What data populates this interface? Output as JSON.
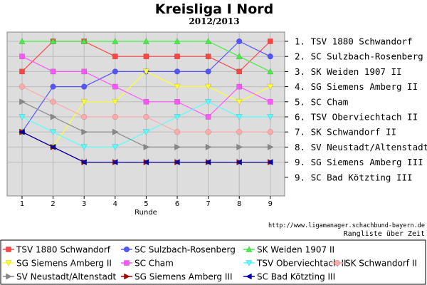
{
  "chart_data": {
    "type": "line",
    "title": "Kreisliga I Nord",
    "subtitle": "2012/2013",
    "xlabel": "Runde",
    "ylabel": "",
    "x": [
      1,
      2,
      3,
      4,
      5,
      6,
      7,
      8,
      9
    ],
    "ylim": [
      1,
      9
    ],
    "y_inverted": true,
    "grid": true,
    "legend_position": "bottom",
    "rank_labels": [
      "1. TSV 1880 Schwandorf",
      "2. SC Sulzbach-Rosenberg",
      "3. SK Weiden 1907 II",
      "4. SG Siemens Amberg II",
      "5. SC Cham",
      "6. TSV Oberviechtach II",
      "7. SK Schwandorf II",
      "8. SV Neustadt/Altenstadt",
      "9. SG Siemens Amberg III",
      "9. SC Bad Kötzting III"
    ],
    "series": [
      {
        "name": "TSV 1880 Schwandorf",
        "color": "#ff4444",
        "marker": "square",
        "values": [
          3,
          1,
          1,
          2,
          2,
          2,
          2,
          3,
          1
        ]
      },
      {
        "name": "SC Sulzbach-Rosenberg",
        "color": "#5555ff",
        "marker": "circle",
        "values": [
          7,
          4,
          4,
          3,
          3,
          3,
          3,
          1,
          2
        ]
      },
      {
        "name": "SK Weiden 1907 II",
        "color": "#44ee44",
        "marker": "triangle-up",
        "values": [
          1,
          1,
          1,
          1,
          1,
          1,
          1,
          2,
          3
        ]
      },
      {
        "name": "SG Siemens Amberg II",
        "color": "#ffff33",
        "marker": "triangle-down",
        "values": [
          7,
          8,
          5,
          5,
          3,
          4,
          4,
          5,
          4
        ]
      },
      {
        "name": "SC Cham",
        "color": "#ff55ff",
        "marker": "square",
        "values": [
          2,
          3,
          3,
          4,
          5,
          5,
          6,
          4,
          5
        ]
      },
      {
        "name": "TSV Oberviechtach II",
        "color": "#55ffff",
        "marker": "triangle-down",
        "values": [
          6,
          7,
          8,
          8,
          7,
          6,
          5,
          6,
          6
        ]
      },
      {
        "name": "SK Schwandorf II",
        "color": "#ffaaaa",
        "marker": "circle",
        "values": [
          4,
          5,
          6,
          6,
          6,
          7,
          7,
          7,
          7
        ]
      },
      {
        "name": "SV Neustadt/Altenstadt",
        "color": "#888888",
        "marker": "triangle-right",
        "values": [
          5,
          6,
          7,
          7,
          8,
          8,
          8,
          8,
          8
        ]
      },
      {
        "name": "SG Siemens Amberg III",
        "color": "#aa0000",
        "marker": "triangle-right",
        "values": [
          7,
          8,
          9,
          9,
          9,
          9,
          9,
          9,
          9
        ]
      },
      {
        "name": "SC Bad Kötzting III",
        "color": "#0000aa",
        "marker": "triangle-left",
        "values": [
          7,
          8,
          9,
          9,
          9,
          9,
          9,
          9,
          9
        ]
      }
    ]
  },
  "footer": {
    "url": "http://www.ligamanager.schachbund-bayern.de",
    "caption": "Rangliste über Zeit"
  }
}
